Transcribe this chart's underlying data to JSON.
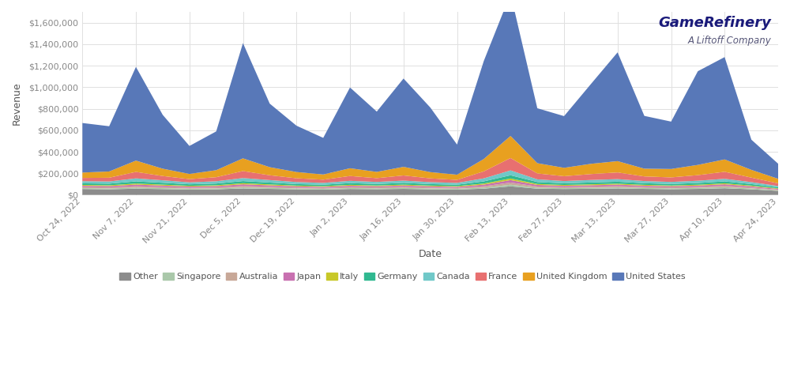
{
  "dates": [
    "Oct 24, 2022",
    "Oct 31, 2022",
    "Nov 7, 2022",
    "Nov 14, 2022",
    "Nov 21, 2022",
    "Nov 28, 2022",
    "Dec 5, 2022",
    "Dec 12, 2022",
    "Dec 19, 2022",
    "Dec 26, 2022",
    "Jan 2, 2023",
    "Jan 9, 2023",
    "Jan 16, 2023",
    "Jan 23, 2023",
    "Jan 30, 2023",
    "Feb 6, 2023",
    "Feb 13, 2023",
    "Feb 20, 2023",
    "Feb 27, 2023",
    "Mar 6, 2023",
    "Mar 13, 2023",
    "Mar 20, 2023",
    "Mar 27, 2023",
    "Apr 3, 2023",
    "Apr 10, 2023",
    "Apr 17, 2023",
    "Apr 24, 2023"
  ],
  "series": {
    "Other": [
      55000,
      52000,
      58000,
      54000,
      50000,
      52000,
      60000,
      56000,
      52000,
      50000,
      55000,
      53000,
      56000,
      52000,
      50000,
      58000,
      80000,
      58000,
      55000,
      57000,
      60000,
      56000,
      53000,
      56000,
      62000,
      52000,
      38000
    ],
    "Singapore": [
      8000,
      8000,
      10000,
      9000,
      8000,
      8000,
      10000,
      9000,
      8000,
      7000,
      9000,
      8000,
      9000,
      8000,
      7000,
      10000,
      15000,
      9000,
      8000,
      9000,
      10000,
      8000,
      8000,
      9000,
      10000,
      8000,
      5000
    ],
    "Australia": [
      10000,
      10000,
      13000,
      11000,
      9000,
      10000,
      13000,
      11000,
      9000,
      8000,
      10000,
      9000,
      11000,
      9000,
      8000,
      13000,
      20000,
      12000,
      10000,
      11000,
      12000,
      10000,
      9000,
      10000,
      13000,
      9000,
      6000
    ],
    "Japan": [
      12000,
      12000,
      15000,
      13000,
      11000,
      12000,
      16000,
      13000,
      11000,
      10000,
      12000,
      11000,
      12000,
      11000,
      10000,
      15000,
      23000,
      14000,
      12000,
      13000,
      14000,
      12000,
      11000,
      12000,
      14000,
      11000,
      7000
    ],
    "Italy": [
      8000,
      8000,
      10000,
      9000,
      7000,
      8000,
      10000,
      9000,
      7000,
      7000,
      8000,
      7000,
      8000,
      7000,
      7000,
      10000,
      15000,
      9000,
      8000,
      9000,
      9000,
      8000,
      7000,
      8000,
      9000,
      7000,
      5000
    ],
    "Germany": [
      15000,
      15000,
      20000,
      17000,
      14000,
      16000,
      20000,
      17000,
      14000,
      13000,
      16000,
      14000,
      16000,
      14000,
      13000,
      20000,
      30000,
      18000,
      15000,
      17000,
      18000,
      15000,
      14000,
      16000,
      18000,
      14000,
      10000
    ],
    "Canada": [
      20000,
      20000,
      28000,
      23000,
      18000,
      21000,
      28000,
      23000,
      19000,
      17000,
      21000,
      19000,
      21000,
      18000,
      17000,
      28000,
      45000,
      25000,
      21000,
      23000,
      24000,
      20000,
      19000,
      21000,
      24000,
      18000,
      12000
    ],
    "France": [
      30000,
      35000,
      60000,
      40000,
      30000,
      38000,
      65000,
      45000,
      35000,
      30000,
      45000,
      35000,
      48000,
      35000,
      28000,
      65000,
      115000,
      55000,
      45000,
      55000,
      62000,
      43000,
      42000,
      52000,
      65000,
      42000,
      25000
    ],
    "United Kingdom": [
      50000,
      58000,
      105000,
      68000,
      48000,
      65000,
      118000,
      75000,
      58000,
      48000,
      72000,
      58000,
      80000,
      58000,
      48000,
      115000,
      205000,
      95000,
      78000,
      95000,
      105000,
      72000,
      78000,
      95000,
      115000,
      72000,
      42000
    ],
    "United States": [
      460000,
      420000,
      870000,
      500000,
      260000,
      360000,
      1070000,
      590000,
      430000,
      340000,
      750000,
      560000,
      820000,
      600000,
      280000,
      910000,
      1320000,
      510000,
      480000,
      740000,
      1010000,
      490000,
      440000,
      870000,
      950000,
      280000,
      140000
    ]
  },
  "colors": {
    "Other": "#8c8c8c",
    "Singapore": "#aac8aa",
    "Australia": "#c8a898",
    "Japan": "#c870b0",
    "Italy": "#c8c828",
    "Germany": "#30b890",
    "Canada": "#70c8c8",
    "France": "#e87070",
    "United Kingdom": "#e8a020",
    "United States": "#5878b8"
  },
  "ylabel": "Revenue",
  "xlabel": "Date",
  "ylim": [
    0,
    1700000
  ],
  "yticks": [
    0,
    200000,
    400000,
    600000,
    800000,
    1000000,
    1200000,
    1400000,
    1600000
  ],
  "background_color": "#ffffff",
  "grid_color": "#e0e0e0",
  "logo_text_main": "GameRefinery",
  "logo_text_sub": "A Liftoff Company",
  "tick_dates": [
    "Oct 24, 2022",
    "Nov 7, 2022",
    "Nov 21, 2022",
    "Dec 5, 2022",
    "Dec 19, 2022",
    "Jan 2, 2023",
    "Jan 16, 2023",
    "Jan 30, 2023",
    "Feb 13, 2023",
    "Feb 27, 2023",
    "Mar 13, 2023",
    "Mar 27, 2023",
    "Apr 10, 2023",
    "Apr 24, 2023"
  ]
}
